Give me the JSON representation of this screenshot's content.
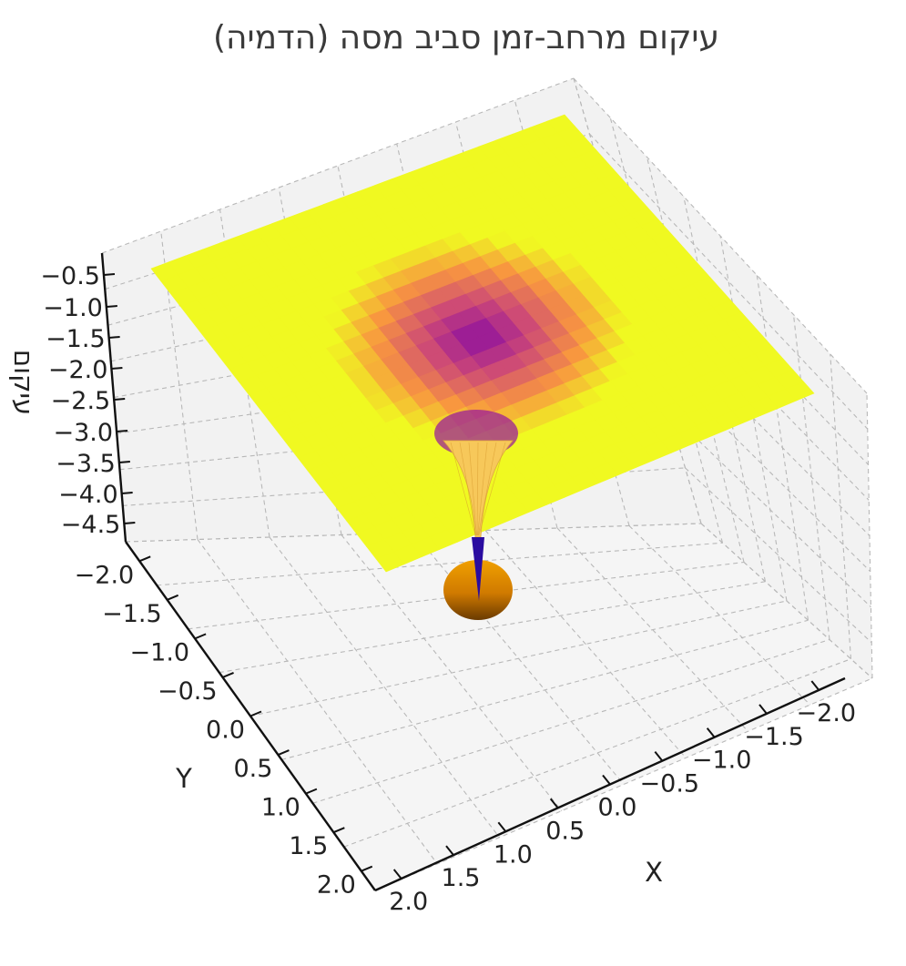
{
  "chart_data": {
    "type": "surface3d",
    "title": "עיקום מרחב-זמן סביב מסה (הדמיה)",
    "xlabel": "X",
    "ylabel": "Y",
    "zlabel": "עיקום",
    "x_ticks": [
      "−2.0",
      "−1.5",
      "−1.0",
      "−0.5",
      "0.0",
      "0.5",
      "1.0",
      "1.5",
      "2.0"
    ],
    "y_ticks": [
      "−2.0",
      "−1.5",
      "−1.0",
      "−0.5",
      "0.0",
      "0.5",
      "1.0",
      "1.5",
      "2.0"
    ],
    "z_ticks": [
      "−0.5",
      "−1.0",
      "−1.5",
      "−2.0",
      "−2.5",
      "−3.0",
      "−3.5",
      "−4.0",
      "−4.5"
    ],
    "x_range": [
      -2.0,
      2.0
    ],
    "y_range": [
      -2.0,
      2.0
    ],
    "z_range": [
      -4.8,
      -0.2
    ],
    "colormap": "plasma",
    "central_mass": {
      "x": 0,
      "y": 0,
      "color": "#e08a00"
    },
    "grid": true
  }
}
